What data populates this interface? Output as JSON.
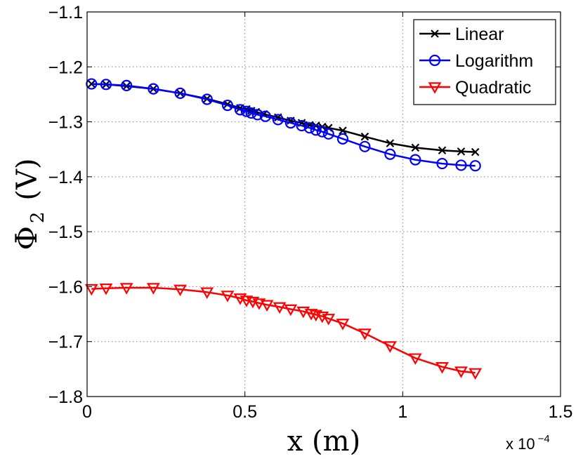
{
  "chart_data": {
    "type": "line",
    "title": "",
    "xlabel": "x (m)",
    "ylabel_symbol": "Φ",
    "ylabel_subscript": "2",
    "ylabel_unit": "(V)",
    "x_exponent_prefix": "x 10",
    "x_exponent_power": "−4",
    "xlim": [
      0,
      1.5
    ],
    "ylim": [
      -1.8,
      -1.1
    ],
    "x_ticks": [
      0,
      0.5,
      1,
      1.5
    ],
    "x_tick_labels": [
      "0",
      "0.5",
      "1",
      "1.5"
    ],
    "y_ticks": [
      -1.1,
      -1.2,
      -1.3,
      -1.4,
      -1.5,
      -1.6,
      -1.7,
      -1.8
    ],
    "y_tick_labels": [
      "−1.1",
      "−1.2",
      "−1.3",
      "−1.4",
      "−1.5",
      "−1.6",
      "−1.7",
      "−1.8"
    ],
    "grid": true,
    "legend_position": "top-right",
    "series": [
      {
        "name": "Linear",
        "color": "#000000",
        "marker": "x",
        "x": [
          0.014,
          0.06,
          0.125,
          0.21,
          0.295,
          0.38,
          0.445,
          0.485,
          0.505,
          0.52,
          0.535,
          0.56,
          0.605,
          0.645,
          0.68,
          0.705,
          0.725,
          0.745,
          0.765,
          0.81,
          0.88,
          0.96,
          1.04,
          1.125,
          1.185,
          1.23
        ],
        "y": [
          -1.231,
          -1.232,
          -1.235,
          -1.24,
          -1.248,
          -1.258,
          -1.268,
          -1.275,
          -1.277,
          -1.28,
          -1.282,
          -1.286,
          -1.292,
          -1.298,
          -1.302,
          -1.306,
          -1.307,
          -1.309,
          -1.311,
          -1.316,
          -1.327,
          -1.339,
          -1.347,
          -1.352,
          -1.354,
          -1.355
        ]
      },
      {
        "name": "Logarithm",
        "color": "#0000ff",
        "marker": "o",
        "x": [
          0.014,
          0.06,
          0.125,
          0.21,
          0.295,
          0.38,
          0.445,
          0.485,
          0.505,
          0.52,
          0.54,
          0.565,
          0.605,
          0.645,
          0.68,
          0.705,
          0.725,
          0.745,
          0.765,
          0.81,
          0.88,
          0.96,
          1.04,
          1.125,
          1.185,
          1.23
        ],
        "y": [
          -1.231,
          -1.232,
          -1.234,
          -1.24,
          -1.248,
          -1.259,
          -1.27,
          -1.278,
          -1.281,
          -1.284,
          -1.287,
          -1.29,
          -1.296,
          -1.302,
          -1.307,
          -1.311,
          -1.315,
          -1.318,
          -1.322,
          -1.331,
          -1.345,
          -1.359,
          -1.369,
          -1.376,
          -1.379,
          -1.38
        ]
      },
      {
        "name": "Quadratic",
        "color": "#ff0000",
        "marker": "v",
        "x": [
          0.014,
          0.06,
          0.125,
          0.21,
          0.295,
          0.38,
          0.445,
          0.485,
          0.505,
          0.525,
          0.545,
          0.57,
          0.61,
          0.645,
          0.685,
          0.71,
          0.725,
          0.745,
          0.765,
          0.81,
          0.88,
          0.96,
          1.04,
          1.125,
          1.185,
          1.23
        ],
        "y": [
          -1.604,
          -1.603,
          -1.602,
          -1.602,
          -1.605,
          -1.61,
          -1.616,
          -1.621,
          -1.625,
          -1.627,
          -1.63,
          -1.633,
          -1.637,
          -1.641,
          -1.645,
          -1.649,
          -1.651,
          -1.654,
          -1.658,
          -1.667,
          -1.685,
          -1.708,
          -1.73,
          -1.746,
          -1.754,
          -1.757
        ]
      }
    ]
  }
}
